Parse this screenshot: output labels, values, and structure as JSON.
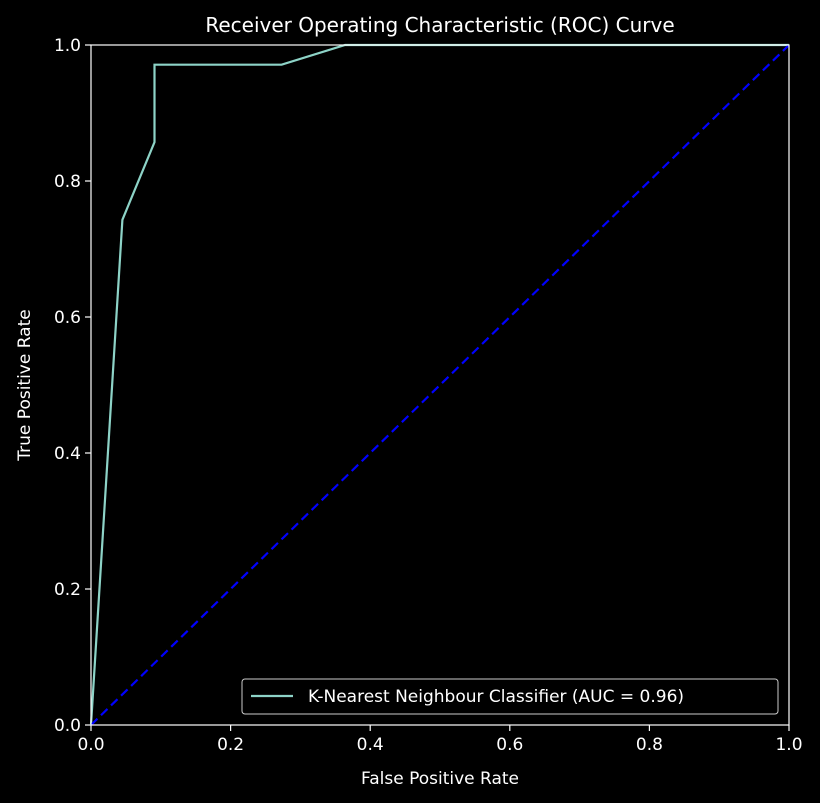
{
  "chart_data": {
    "type": "line",
    "title": "Receiver Operating Characteristic (ROC) Curve",
    "xlabel": "False Positive Rate",
    "ylabel": "True Positive Rate",
    "xlim": [
      0,
      1
    ],
    "ylim": [
      0,
      1
    ],
    "xticks": [
      "0.0",
      "0.2",
      "0.4",
      "0.6",
      "0.8",
      "1.0"
    ],
    "yticks": [
      "0.0",
      "0.2",
      "0.4",
      "0.6",
      "0.8",
      "1.0"
    ],
    "grid": false,
    "legend_position": "lower-right",
    "series": [
      {
        "name": "K-Nearest Neighbour Classifier (AUC = 0.96)",
        "color": "#8dd3c7",
        "style": "solid",
        "x": [
          0.0,
          0.045,
          0.091,
          0.091,
          0.273,
          0.364,
          1.0
        ],
        "y": [
          0.0,
          0.743,
          0.857,
          0.971,
          0.971,
          1.0,
          1.0
        ]
      },
      {
        "name": "",
        "color": "#0000ff",
        "style": "dashed",
        "x": [
          0.0,
          1.0
        ],
        "y": [
          0.0,
          1.0
        ]
      }
    ]
  }
}
